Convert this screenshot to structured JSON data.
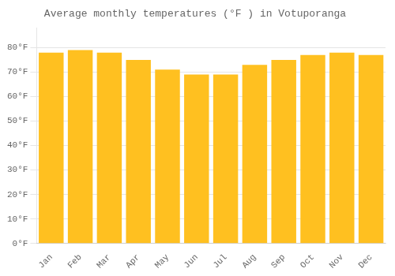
{
  "chart_data": {
    "type": "bar",
    "title": "Average monthly temperatures (°F ) in Votuporanga",
    "categories": [
      "Jan",
      "Feb",
      "Mar",
      "Apr",
      "May",
      "Jun",
      "Jul",
      "Aug",
      "Sep",
      "Oct",
      "Nov",
      "Dec"
    ],
    "values": [
      78,
      79,
      78,
      75,
      71,
      69,
      69,
      73,
      75,
      77,
      78,
      77
    ],
    "color": "#FFC020",
    "ylim": [
      0,
      88
    ],
    "yticks": [
      {
        "value": 0,
        "label": "0°F"
      },
      {
        "value": 10,
        "label": "10°F"
      },
      {
        "value": 20,
        "label": "20°F"
      },
      {
        "value": 30,
        "label": "30°F"
      },
      {
        "value": 40,
        "label": "40°F"
      },
      {
        "value": 50,
        "label": "50°F"
      },
      {
        "value": 60,
        "label": "60°F"
      },
      {
        "value": 70,
        "label": "70°F"
      },
      {
        "value": 80,
        "label": "80°F"
      }
    ],
    "grid": true
  }
}
